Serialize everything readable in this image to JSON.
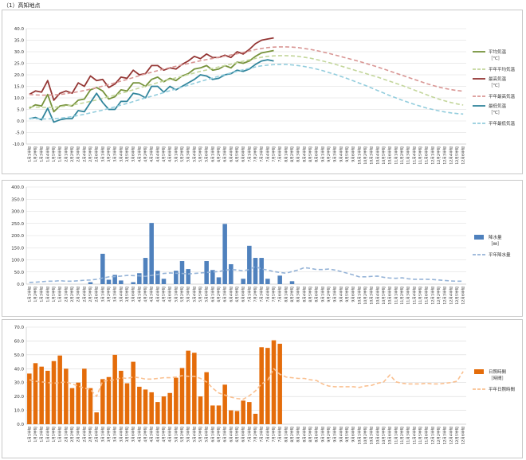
{
  "page_title": "（1）高知地点",
  "colors": {
    "avg": "#77933C",
    "avg_normal": "#C3D69B",
    "max": "#943634",
    "max_normal": "#D99694",
    "min": "#31859C",
    "min_normal": "#93CDDD",
    "rain": "#4F81BD",
    "rain_normal": "#95B3D7",
    "sun": "#E46C0A",
    "sun_normal": "#FAC090",
    "grid": "#d9d9d9"
  },
  "x_labels": [
    "1月1半旬",
    "1月2半旬",
    "1月3半旬",
    "1月4半旬",
    "1月5半旬",
    "1月6半旬",
    "2月1半旬",
    "2月2半旬",
    "2月3半旬",
    "2月4半旬",
    "2月5半旬",
    "2月6半旬",
    "3月1半旬",
    "3月2半旬",
    "3月3半旬",
    "3月4半旬",
    "3月5半旬",
    "3月6半旬",
    "4月1半旬",
    "4月2半旬",
    "4月3半旬",
    "4月4半旬",
    "4月5半旬",
    "4月6半旬",
    "5月1半旬",
    "5月2半旬",
    "5月3半旬",
    "5月4半旬",
    "5月5半旬",
    "5月6半旬",
    "6月1半旬",
    "6月2半旬",
    "6月3半旬",
    "6月4半旬",
    "6月5半旬",
    "6月6半旬",
    "7月1半旬",
    "7月2半旬",
    "7月3半旬",
    "7月4半旬",
    "7月5半旬",
    "7月6半旬",
    "8月1半旬",
    "8月2半旬",
    "8月3半旬",
    "8月4半旬",
    "8月5半旬",
    "8月6半旬",
    "9月1半旬",
    "9月2半旬",
    "9月3半旬",
    "9月4半旬",
    "9月5半旬",
    "9月6半旬",
    "10月1半旬",
    "10月2半旬",
    "10月3半旬",
    "10月4半旬",
    "10月5半旬",
    "10月6半旬",
    "11月1半旬",
    "11月2半旬",
    "11月3半旬",
    "11月4半旬",
    "11月5半旬",
    "11月6半旬",
    "12月1半旬",
    "12月2半旬",
    "12月3半旬",
    "12月4半旬",
    "12月5半旬",
    "12月6半旬"
  ],
  "chart_data": [
    {
      "type": "line",
      "ylim": [
        -10,
        40
      ],
      "ytick_step": 5,
      "ytick_labels": [
        "-10.0",
        "-5.0",
        "0.0",
        "5.0",
        "10.0",
        "15.0",
        "20.0",
        "25.0",
        "30.0",
        "35.0",
        "40.0"
      ],
      "series": [
        {
          "name": "平均気温\n［℃］",
          "key": "avg",
          "dashed": false,
          "values": [
            5.5,
            7.0,
            6.5,
            11.5,
            4.0,
            6.5,
            7.0,
            6.5,
            9.0,
            9.5,
            13.5,
            14.5,
            13.0,
            9.5,
            10.5,
            13.5,
            13.0,
            16.5,
            16.5,
            15.0,
            18.0,
            19.0,
            17.0,
            18.5,
            17.5,
            19.5,
            20.5,
            22.5,
            23.0,
            24.0,
            22.0,
            22.5,
            24.0,
            23.0,
            25.5,
            25.0,
            26.0,
            28.0,
            29.5,
            30.0,
            30.5
          ]
        },
        {
          "name": "平年平均気温",
          "key": "avg_normal",
          "dashed": true,
          "values": [
            6.2,
            6.0,
            5.9,
            5.9,
            6.0,
            6.2,
            6.5,
            6.9,
            7.4,
            7.9,
            8.5,
            9.1,
            9.8,
            10.5,
            11.2,
            12.0,
            12.7,
            13.5,
            14.3,
            15.1,
            15.8,
            16.6,
            17.3,
            18.0,
            18.7,
            19.4,
            20.1,
            20.8,
            21.5,
            22.1,
            22.8,
            23.4,
            24.0,
            24.6,
            25.3,
            25.9,
            26.5,
            27.1,
            27.6,
            28.0,
            28.2,
            28.3,
            28.3,
            28.2,
            28.0,
            27.6,
            27.2,
            26.6,
            26.0,
            25.3,
            24.6,
            23.8,
            23.0,
            22.2,
            21.4,
            20.6,
            19.8,
            19.0,
            18.1,
            17.2,
            16.3,
            15.4,
            14.4,
            13.4,
            12.4,
            11.4,
            10.4,
            9.5,
            8.7,
            8.0,
            7.4,
            6.9
          ]
        },
        {
          "name": "最高気温\n［℃］",
          "key": "max",
          "dashed": false,
          "values": [
            11.5,
            13.0,
            12.5,
            17.5,
            9.0,
            12.0,
            13.0,
            12.0,
            16.5,
            15.0,
            19.5,
            17.5,
            18.0,
            14.5,
            16.0,
            19.0,
            18.5,
            22.0,
            20.0,
            20.5,
            24.0,
            24.0,
            22.0,
            23.0,
            22.5,
            24.5,
            26.0,
            28.0,
            27.0,
            29.0,
            27.5,
            27.5,
            28.5,
            27.5,
            30.0,
            29.0,
            31.0,
            33.5,
            35.0,
            35.5,
            36.0
          ]
        },
        {
          "name": "平年最高気温",
          "key": "max_normal",
          "dashed": true,
          "values": [
            11.5,
            11.3,
            11.2,
            11.2,
            11.3,
            11.5,
            11.8,
            12.2,
            12.7,
            13.2,
            13.8,
            14.4,
            15.1,
            15.8,
            16.5,
            17.3,
            18.0,
            18.8,
            19.6,
            20.4,
            21.1,
            21.8,
            22.5,
            23.1,
            23.7,
            24.3,
            24.9,
            25.5,
            26.1,
            26.6,
            27.1,
            27.6,
            28.1,
            28.6,
            29.1,
            29.7,
            30.3,
            30.9,
            31.4,
            31.8,
            32.0,
            32.1,
            32.1,
            32.0,
            31.8,
            31.4,
            31.0,
            30.5,
            29.9,
            29.3,
            28.6,
            27.9,
            27.2,
            26.5,
            25.8,
            25.0,
            24.2,
            23.4,
            22.5,
            21.6,
            20.7,
            19.8,
            18.9,
            18.0,
            17.1,
            16.2,
            15.4,
            14.7,
            14.1,
            13.6,
            13.2,
            12.9
          ]
        },
        {
          "name": "最低気温\n［℃］",
          "key": "min",
          "dashed": false,
          "values": [
            1.0,
            1.5,
            0.5,
            5.5,
            -0.5,
            0.5,
            1.0,
            1.0,
            4.5,
            4.0,
            8.0,
            12.0,
            8.0,
            5.0,
            5.0,
            8.5,
            8.5,
            12.0,
            11.5,
            10.0,
            15.0,
            15.0,
            12.5,
            15.0,
            13.5,
            15.0,
            16.5,
            18.0,
            20.0,
            19.5,
            18.0,
            18.5,
            20.0,
            20.5,
            22.0,
            21.5,
            22.5,
            24.5,
            26.0,
            26.5,
            26.0
          ]
        },
        {
          "name": "平年最低気温",
          "key": "min_normal",
          "dashed": true,
          "values": [
            1.2,
            1.0,
            0.9,
            0.9,
            1.0,
            1.2,
            1.5,
            1.9,
            2.4,
            2.9,
            3.5,
            4.1,
            4.7,
            5.4,
            6.1,
            6.9,
            7.6,
            8.4,
            9.2,
            10.0,
            10.7,
            11.5,
            12.3,
            13.1,
            13.9,
            14.7,
            15.5,
            16.3,
            17.1,
            17.9,
            18.6,
            19.4,
            20.1,
            20.8,
            21.5,
            22.2,
            22.8,
            23.4,
            23.9,
            24.2,
            24.4,
            24.5,
            24.5,
            24.3,
            24.0,
            23.6,
            23.1,
            22.5,
            21.8,
            21.0,
            20.2,
            19.3,
            18.4,
            17.4,
            16.4,
            15.4,
            14.3,
            13.2,
            12.1,
            11.0,
            10.0,
            9.0,
            8.1,
            7.2,
            6.4,
            5.6,
            5.0,
            4.4,
            3.9,
            3.5,
            3.2,
            3.0
          ]
        }
      ]
    },
    {
      "type": "bar",
      "ylim": [
        0,
        400
      ],
      "ytick_step": 50,
      "ytick_labels": [
        "0.0",
        "50.0",
        "100.0",
        "150.0",
        "200.0",
        "250.0",
        "300.0",
        "350.0",
        "400.0"
      ],
      "series": [
        {
          "name": "降水量\n［㎜］",
          "key": "rain",
          "kind": "bar",
          "values": [
            0,
            0,
            0,
            0,
            0,
            0,
            0,
            0,
            0,
            0,
            8,
            0,
            125,
            18,
            38,
            15,
            0,
            8,
            45,
            108,
            252,
            55,
            22,
            0,
            55,
            95,
            62,
            0,
            0,
            95,
            58,
            28,
            248,
            82,
            0,
            22,
            158,
            108,
            108,
            22,
            0,
            35,
            0,
            12
          ]
        },
        {
          "name": "平年降水量",
          "key": "rain_normal",
          "kind": "line",
          "dashed": true,
          "values": [
            7,
            8,
            10,
            12,
            12,
            14,
            12,
            12,
            14,
            16,
            17,
            20,
            25,
            30,
            31,
            33,
            36,
            35,
            34,
            32,
            36,
            40,
            44,
            46,
            45,
            44,
            42,
            44,
            46,
            48,
            50,
            52,
            57,
            60,
            58,
            55,
            60,
            73,
            62,
            58,
            52,
            48,
            45,
            52,
            58,
            68,
            65,
            60,
            60,
            62,
            58,
            52,
            45,
            38,
            30,
            30,
            32,
            33,
            28,
            25,
            24,
            26,
            22,
            20,
            20,
            20,
            19,
            17,
            15,
            13,
            12,
            12
          ]
        }
      ]
    },
    {
      "type": "bar",
      "ylim": [
        0,
        70
      ],
      "ytick_step": 10,
      "ytick_labels": [
        "0.0",
        "10.0",
        "20.0",
        "30.0",
        "40.0",
        "50.0",
        "60.0",
        "70.0"
      ],
      "series": [
        {
          "name": "日照時間\n［時間］",
          "key": "sun",
          "kind": "bar",
          "values": [
            36.5,
            44.0,
            41.5,
            38.5,
            45.5,
            49.5,
            40.0,
            26.0,
            30.0,
            40.0,
            26.0,
            8.5,
            32.5,
            34.0,
            50.0,
            38.5,
            29.5,
            45.0,
            27.0,
            25.0,
            23.0,
            16.0,
            20.0,
            22.5,
            33.5,
            40.5,
            53.0,
            51.5,
            20.0,
            37.5,
            13.5,
            13.5,
            28.5,
            10.0,
            9.5,
            17.0,
            16.0,
            7.5,
            55.5,
            55.0,
            60.5,
            58.0
          ]
        },
        {
          "name": "平年日照時間",
          "key": "sun_normal",
          "kind": "line",
          "dashed": true,
          "values": [
            32.0,
            31.0,
            30.5,
            30.0,
            29.5,
            30.0,
            30.5,
            29.0,
            27.5,
            26.0,
            25.0,
            20.0,
            31.0,
            31.5,
            32.0,
            33.5,
            33.0,
            34.0,
            33.5,
            32.5,
            32.5,
            33.0,
            33.5,
            33.5,
            34.0,
            35.0,
            34.5,
            34.5,
            33.0,
            30.5,
            26.0,
            22.5,
            21.0,
            19.5,
            18.5,
            18.0,
            20.5,
            24.0,
            29.0,
            31.5,
            40.0,
            36.0,
            34.0,
            33.5,
            33.0,
            33.0,
            32.0,
            31.5,
            29.0,
            27.5,
            27.0,
            27.0,
            27.0,
            27.0,
            26.5,
            27.5,
            28.0,
            29.5,
            30.5,
            35.5,
            30.5,
            29.5,
            29.0,
            29.0,
            29.0,
            29.5,
            29.0,
            29.0,
            29.5,
            30.0,
            31.0,
            38.0
          ]
        }
      ]
    }
  ]
}
